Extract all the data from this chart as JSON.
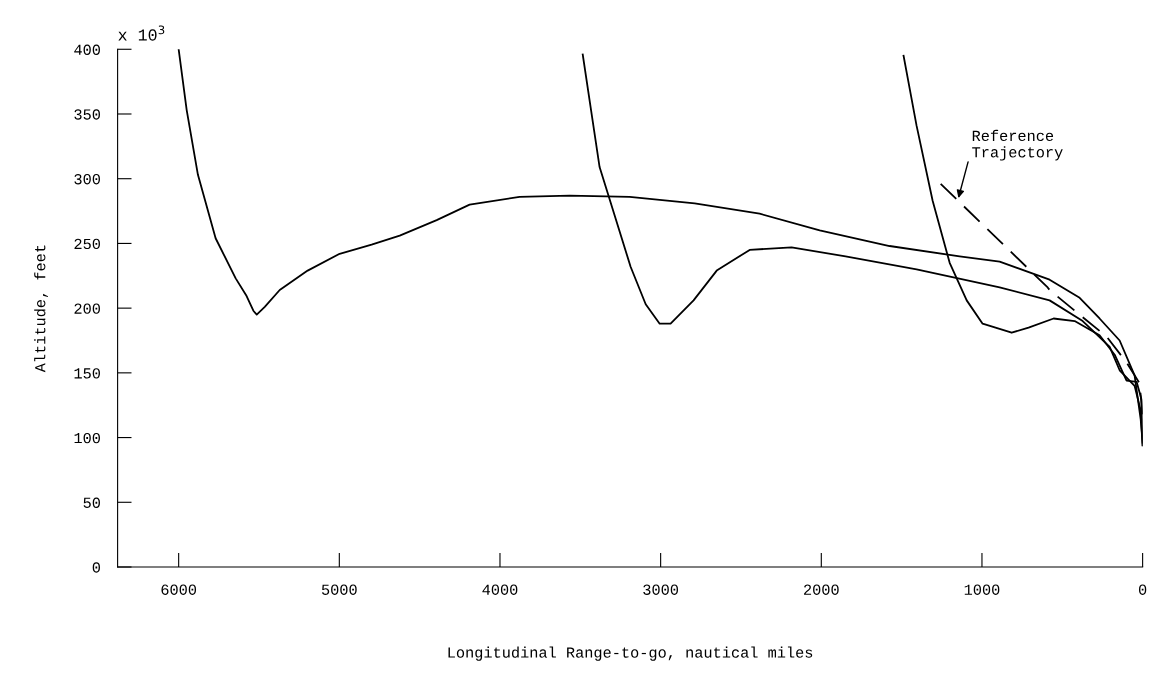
{
  "chart_data": {
    "type": "line",
    "xlabel": "Longitudinal Range-to-go, nautical miles",
    "ylabel": "Altitude, feet",
    "xlim": [
      6380,
      0
    ],
    "ylim": [
      0,
      400
    ],
    "xticks": [
      6000,
      5000,
      4000,
      3000,
      2000,
      1000,
      0
    ],
    "yticks": [
      0,
      50,
      100,
      150,
      200,
      250,
      300,
      350,
      400
    ],
    "grid": false,
    "legend": false,
    "marker": "none",
    "annotations": [
      "x 10$^{3}$",
      {
        "text": "Reference\nTrajectory",
        "x": 1151,
        "y": 283
      }
    ],
    "series": [
      {
        "color": "#000000",
        "line_style": "solid",
        "x": [
          6000,
          5950,
          5880,
          5770,
          5645,
          5580,
          5535,
          5514,
          5464,
          5371,
          5197,
          4998,
          4799,
          4624,
          4394,
          4189,
          3878,
          3566,
          3193,
          2788,
          2384,
          2010,
          1575,
          1139,
          890,
          579,
          392,
          268,
          143,
          50,
          12,
          0
        ],
        "values": [
          400,
          353,
          303,
          254,
          223,
          210,
          198,
          195,
          201,
          214,
          229,
          242,
          249,
          256,
          268,
          280,
          286,
          287,
          286,
          281,
          273,
          260,
          248,
          240,
          236,
          222,
          208,
          192,
          175,
          148,
          114,
          96
        ]
      },
      {
        "color": "#000000",
        "line_style": "solid",
        "x": [
          3485,
          3380,
          3187,
          3093,
          3006,
          2938,
          2795,
          2651,
          2446,
          2185,
          1849,
          1407,
          890,
          579,
          373,
          330,
          205,
          143,
          50,
          12,
          0
        ],
        "values": [
          396,
          309,
          232,
          203,
          188,
          188,
          206,
          229,
          245,
          247,
          240,
          230,
          216,
          206,
          190,
          185,
          170,
          152,
          140,
          121,
          94
        ]
      },
      {
        "color": "#000000",
        "line_style": "solid",
        "x": [
          1488,
          1407,
          1307,
          1201,
          1095,
          996,
          815,
          710,
          554,
          423,
          268,
          174,
          100,
          37,
          6,
          0
        ],
        "values": [
          395,
          341,
          283,
          235,
          206,
          188,
          181,
          185,
          192,
          190,
          179,
          164,
          144,
          143,
          129,
          94
        ]
      },
      {
        "color": "#000000",
        "line_style": "dashed",
        "x": [
          1257,
          591,
          579,
          373,
          224,
          100,
          19,
          0
        ],
        "values": [
          296,
          216,
          214,
          193,
          178,
          158,
          142,
          116
        ]
      }
    ]
  }
}
